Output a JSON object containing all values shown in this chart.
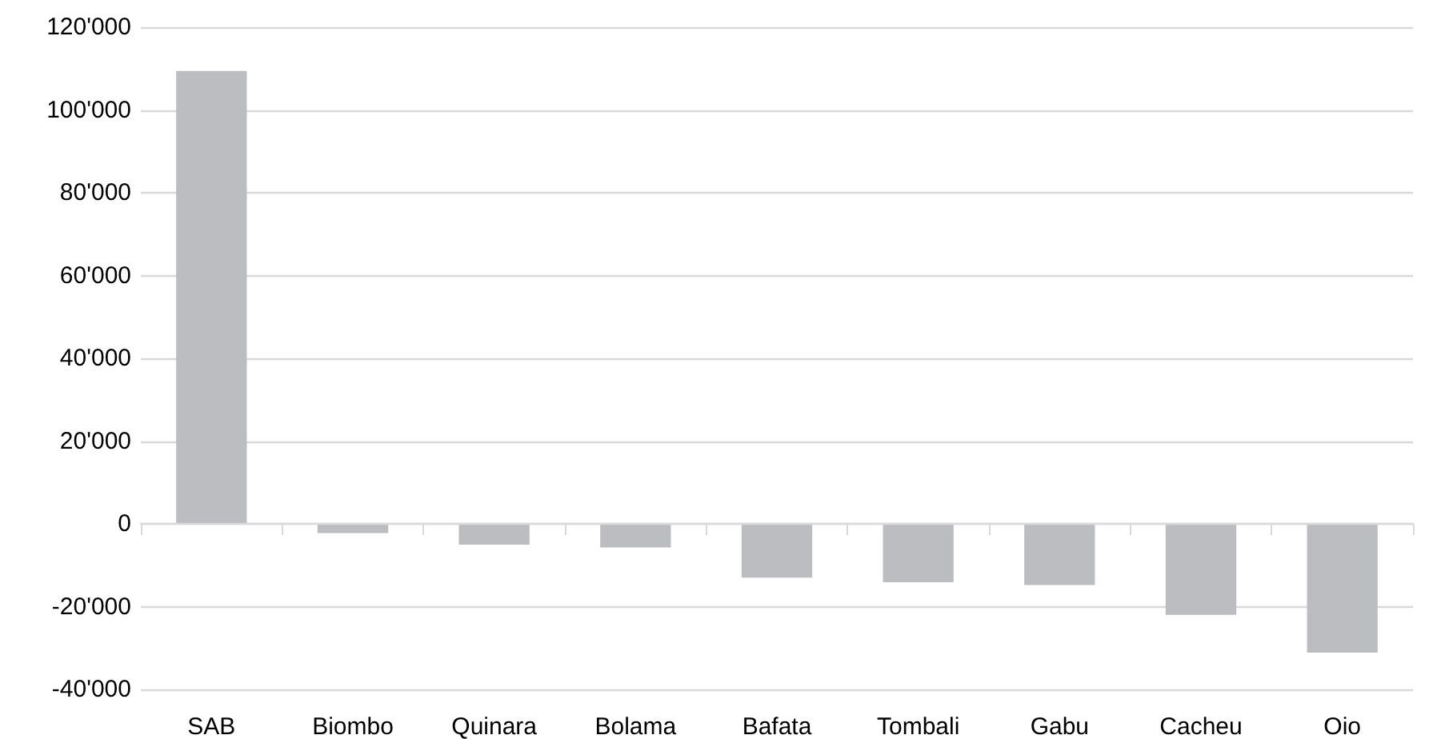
{
  "chart_data": {
    "type": "bar",
    "categories": [
      "SAB",
      "Biombo",
      "Quinara",
      "Bolama",
      "Bafata",
      "Tombali",
      "Gabu",
      "Cacheu",
      "Oio"
    ],
    "values": [
      109400,
      -2200,
      -5000,
      -5700,
      -13000,
      -14100,
      -14800,
      -22000,
      -31100
    ],
    "color": "#bcbdc1",
    "ylim": [
      -40000,
      120000
    ],
    "yticks": [
      {
        "value": -40000,
        "label": "-40'000"
      },
      {
        "value": -20000,
        "label": "-20'000"
      },
      {
        "value": 0,
        "label": "0"
      },
      {
        "value": 20000,
        "label": "20'000"
      },
      {
        "value": 40000,
        "label": "40'000"
      },
      {
        "value": 60000,
        "label": "60'000"
      },
      {
        "value": 80000,
        "label": "80'000"
      },
      {
        "value": 100000,
        "label": "100'000"
      },
      {
        "value": 120000,
        "label": "120'000"
      }
    ],
    "grid": "y"
  }
}
